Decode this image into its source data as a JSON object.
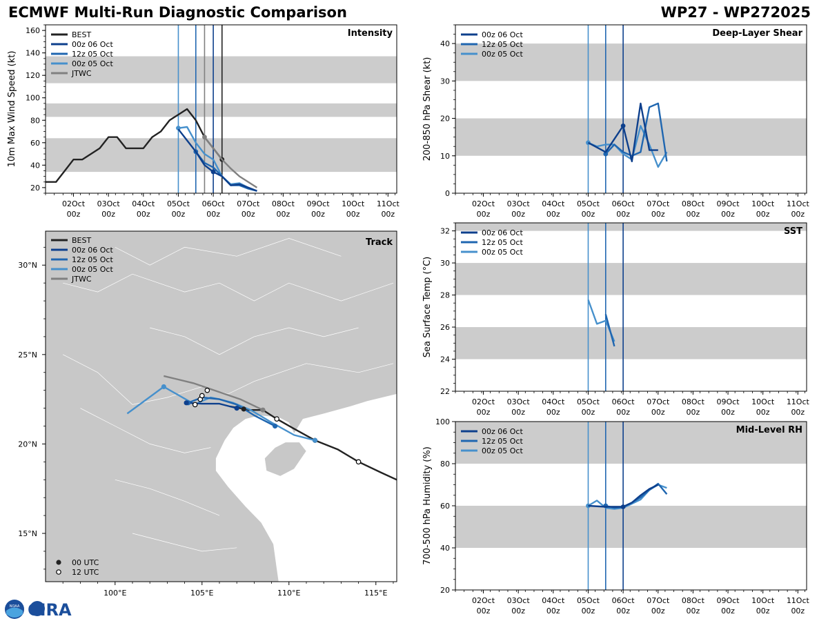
{
  "header": {
    "title": "ECMWF Multi-Run Diagnostic Comparison",
    "storm_id": "WP27 - WP272025"
  },
  "logo": {
    "text": "CIRA",
    "noaa_text": "NOAA"
  },
  "colors": {
    "best": "#222222",
    "run_00z06": "#0d3f8c",
    "run_12z05": "#1f66b0",
    "run_00z05": "#4690cc",
    "jtwc": "#808080",
    "band": "#cccccc",
    "land": "#c8c8c8",
    "border": "#ffffff"
  },
  "time_axis": {
    "ticks": [
      "02Oct\n00z",
      "03Oct\n00z",
      "04Oct\n00z",
      "05Oct\n00z",
      "06Oct\n00z",
      "07Oct\n00z",
      "08Oct\n00z",
      "09Oct\n00z",
      "10Oct\n00z",
      "11Oct\n00z"
    ],
    "start_day": 1.2,
    "end_day": 11.25
  },
  "chart_data": [
    {
      "id": "intensity",
      "type": "line",
      "title": "Intensity",
      "ylabel": "10m Max Wind Speed (kt)",
      "ylim": [
        15,
        165
      ],
      "yticks": [
        20,
        40,
        60,
        80,
        100,
        120,
        140,
        160
      ],
      "bands": [
        [
          34,
          64
        ],
        [
          83,
          95
        ],
        [
          113,
          137
        ]
      ],
      "init_lines": [
        {
          "day": 5.0,
          "color_key": "run_00z05"
        },
        {
          "day": 5.5,
          "color_key": "run_12z05"
        },
        {
          "day": 5.75,
          "color_key": "jtwc"
        },
        {
          "day": 6.0,
          "color_key": "run_00z06"
        },
        {
          "day": 6.25,
          "color_key": "best"
        }
      ],
      "legend": [
        "BEST",
        "00z 06 Oct",
        "12z 05 Oct",
        "00z 05 Oct",
        "JTWC"
      ],
      "legend_colors": [
        "best",
        "run_00z06",
        "run_12z05",
        "run_00z05",
        "jtwc"
      ],
      "series": [
        {
          "name": "BEST",
          "color_key": "best",
          "x": [
            1.2,
            1.5,
            1.75,
            2.0,
            2.25,
            2.5,
            2.75,
            3.0,
            3.25,
            3.5,
            3.75,
            4.0,
            4.25,
            4.5,
            4.75,
            5.0,
            5.25,
            5.5,
            5.75,
            6.0,
            6.25
          ],
          "y": [
            25,
            25,
            35,
            45,
            45,
            50,
            55,
            65,
            65,
            55,
            55,
            55,
            65,
            70,
            80,
            85,
            90,
            80,
            65,
            55,
            45
          ],
          "markers": [
            6.25
          ]
        },
        {
          "name": "00z 05 Oct",
          "color_key": "run_00z05",
          "x": [
            5.0,
            5.25,
            5.5,
            5.75,
            6.0,
            6.25,
            6.5,
            6.75,
            7.0,
            7.25
          ],
          "y": [
            73,
            74,
            60,
            50,
            45,
            30,
            23,
            24,
            20,
            17
          ],
          "markers": [
            5.0
          ]
        },
        {
          "name": "12z 05 Oct",
          "color_key": "run_12z05",
          "x": [
            5.5,
            5.75,
            6.0,
            6.25,
            6.5,
            6.75,
            7.0,
            7.25
          ],
          "y": [
            52,
            42,
            38,
            30,
            22,
            22,
            19,
            17
          ],
          "markers": [
            5.5
          ]
        },
        {
          "name": "00z 06 Oct",
          "color_key": "run_00z06",
          "x": [
            5.0,
            5.25,
            5.5,
            5.75,
            6.0,
            6.25,
            6.5,
            6.75,
            7.0,
            7.25
          ],
          "y": [
            72,
            62,
            52,
            40,
            34,
            30,
            22,
            23,
            20,
            17
          ],
          "markers": [
            6.0
          ]
        },
        {
          "name": "JTWC",
          "color_key": "jtwc",
          "x": [
            5.75,
            6.0,
            6.25,
            6.5,
            6.75,
            7.0,
            7.25
          ],
          "y": [
            65,
            55,
            45,
            37,
            30,
            25,
            20
          ],
          "markers": [
            5.75
          ]
        }
      ]
    },
    {
      "id": "shear",
      "type": "line",
      "title": "Deep-Layer Shear",
      "ylabel": "200-850 hPa Shear (kt)",
      "ylim": [
        0,
        45
      ],
      "yticks": [
        0,
        10,
        20,
        30,
        40
      ],
      "bands": [
        [
          10,
          20
        ],
        [
          30,
          40
        ]
      ],
      "init_lines": [
        {
          "day": 5.0,
          "color_key": "run_00z05"
        },
        {
          "day": 5.5,
          "color_key": "run_12z05"
        },
        {
          "day": 6.0,
          "color_key": "run_00z06"
        }
      ],
      "legend": [
        "00z 06 Oct",
        "12z 05 Oct",
        "00z 05 Oct"
      ],
      "legend_colors": [
        "run_00z06",
        "run_12z05",
        "run_00z05"
      ],
      "series": [
        {
          "name": "00z 05 Oct",
          "color_key": "run_00z05",
          "x": [
            5.0,
            5.25,
            5.5,
            5.75,
            6.0,
            6.25,
            6.5,
            6.75,
            7.0,
            7.25
          ],
          "y": [
            13.5,
            12.5,
            13,
            13,
            10.5,
            9,
            18,
            13,
            7,
            11
          ],
          "markers": [
            5.0
          ]
        },
        {
          "name": "12z 05 Oct",
          "color_key": "run_12z05",
          "x": [
            5.5,
            5.75,
            6.0,
            6.25,
            6.5,
            6.75,
            7.0,
            7.25
          ],
          "y": [
            10.5,
            13,
            11,
            10,
            11,
            23,
            24,
            8.5
          ],
          "markers": [
            5.5
          ]
        },
        {
          "name": "00z 06 Oct",
          "color_key": "run_00z06",
          "x": [
            5.0,
            5.5,
            6.0,
            6.25,
            6.5,
            6.75,
            7.0
          ],
          "y": [
            13.5,
            11,
            18,
            8.5,
            24,
            11.5,
            11.5
          ],
          "markers": [
            6.0
          ]
        }
      ]
    },
    {
      "id": "sst",
      "type": "line",
      "title": "SST",
      "ylabel": "Sea Surface Temp (°C)",
      "ylim": [
        22,
        32.5
      ],
      "yticks": [
        22,
        24,
        26,
        28,
        30,
        32
      ],
      "bands": [
        [
          24,
          26
        ],
        [
          28,
          30
        ],
        [
          32,
          32.5
        ]
      ],
      "init_lines": [
        {
          "day": 5.0,
          "color_key": "run_00z05"
        },
        {
          "day": 5.5,
          "color_key": "run_12z05"
        },
        {
          "day": 6.0,
          "color_key": "run_00z06"
        }
      ],
      "legend": [
        "00z 06 Oct",
        "12z 05 Oct",
        "00z 05 Oct"
      ],
      "legend_colors": [
        "run_00z06",
        "run_12z05",
        "run_00z05"
      ],
      "series": [
        {
          "name": "00z 05 Oct",
          "color_key": "run_00z05",
          "x": [
            5.0,
            5.25,
            5.5,
            5.75
          ],
          "y": [
            27.7,
            26.2,
            26.4,
            25.1
          ],
          "markers": []
        },
        {
          "name": "12z 05 Oct",
          "color_key": "run_12z05",
          "x": [
            5.5,
            5.75
          ],
          "y": [
            26.8,
            24.8
          ],
          "markers": []
        }
      ]
    },
    {
      "id": "rh",
      "type": "line",
      "title": "Mid-Level RH",
      "ylabel": "700-500 hPa Humidity (%)",
      "ylim": [
        20,
        100
      ],
      "yticks": [
        20,
        40,
        60,
        80,
        100
      ],
      "bands": [
        [
          40,
          60
        ],
        [
          80,
          100
        ]
      ],
      "init_lines": [
        {
          "day": 5.0,
          "color_key": "run_00z05"
        },
        {
          "day": 5.5,
          "color_key": "run_12z05"
        },
        {
          "day": 6.0,
          "color_key": "run_00z06"
        }
      ],
      "legend": [
        "00z 06 Oct",
        "12z 05 Oct",
        "00z 05 Oct"
      ],
      "legend_colors": [
        "run_00z06",
        "run_12z05",
        "run_00z05"
      ],
      "series": [
        {
          "name": "00z 05 Oct",
          "color_key": "run_00z05",
          "x": [
            5.0,
            5.25,
            5.5,
            5.75,
            6.0,
            6.25,
            6.5,
            6.75,
            7.0,
            7.25
          ],
          "y": [
            60,
            62.5,
            59,
            58.5,
            59,
            61,
            63,
            67.5,
            70,
            68.5
          ],
          "markers": [
            5.0
          ]
        },
        {
          "name": "12z 05 Oct",
          "color_key": "run_12z05",
          "x": [
            5.5,
            5.75,
            6.0,
            6.25,
            6.5,
            6.75,
            7.0,
            7.25
          ],
          "y": [
            60,
            59,
            59.5,
            61.5,
            64,
            67.5,
            70.5,
            65.5
          ],
          "markers": [
            5.5
          ]
        },
        {
          "name": "00z 06 Oct",
          "color_key": "run_00z06",
          "x": [
            5.0,
            5.5,
            6.0,
            6.25,
            6.5,
            6.75,
            7.0
          ],
          "y": [
            60,
            59.5,
            59.5,
            61.5,
            65,
            68,
            70
          ],
          "markers": [
            6.0
          ]
        }
      ]
    },
    {
      "id": "track",
      "type": "line",
      "title": "Track",
      "lon_range": [
        96.0,
        116.2
      ],
      "lat_range": [
        12.3,
        31.9
      ],
      "lon_ticks": [
        100,
        105,
        110,
        115
      ],
      "lon_tick_labels": [
        "100°E",
        "105°E",
        "110°E",
        "115°E"
      ],
      "lat_ticks": [
        15,
        20,
        25,
        30
      ],
      "lat_tick_labels": [
        "15°N",
        "20°N",
        "25°N",
        "30°N"
      ],
      "legend": [
        "BEST",
        "00z 06 Oct",
        "12z 05 Oct",
        "00z 05 Oct",
        "JTWC"
      ],
      "legend_colors": [
        "best",
        "run_00z06",
        "run_12z05",
        "run_00z05",
        "jtwc"
      ],
      "marker_legend": [
        "00 UTC",
        "12 UTC"
      ],
      "series": [
        {
          "name": "BEST",
          "color_key": "best",
          "lon": [
            116.2,
            115.3,
            114.0,
            112.8,
            111.5,
            110.2,
            109.3,
            108.5,
            107.6,
            107.2,
            106.6
          ],
          "lat": [
            18.0,
            18.4,
            19.0,
            19.7,
            20.2,
            20.9,
            21.4,
            21.9,
            21.9,
            22.0,
            22.1
          ],
          "open": [
            [
              114.0,
              19.0
            ],
            [
              109.3,
              21.4
            ]
          ],
          "filled": [
            [
              111.5,
              20.2
            ],
            [
              107.4,
              21.95
            ]
          ]
        },
        {
          "name": "00z 05 Oct",
          "color_key": "run_00z05",
          "lon": [
            111.5,
            110.3,
            109.0,
            107.8,
            106.8,
            106.0,
            105.5,
            105.0,
            104.6,
            102.8,
            100.7
          ],
          "lat": [
            20.2,
            20.5,
            21.2,
            21.9,
            22.3,
            22.5,
            22.6,
            22.4,
            22.2,
            23.2,
            21.7
          ],
          "open": [
            [
              104.6,
              22.2
            ]
          ],
          "filled": [
            [
              111.5,
              20.2
            ],
            [
              102.8,
              23.2
            ]
          ]
        },
        {
          "name": "12z 05 Oct",
          "color_key": "run_12z05",
          "lon": [
            109.2,
            108.0,
            107.0,
            106.0,
            105.0,
            104.2
          ],
          "lat": [
            21.0,
            21.6,
            22.2,
            22.5,
            22.6,
            22.3
          ],
          "open": [
            [
              104.9,
              22.5
            ]
          ],
          "filled": [
            [
              109.2,
              21.0
            ],
            [
              104.2,
              22.3
            ]
          ]
        },
        {
          "name": "00z 06 Oct",
          "color_key": "run_00z06",
          "lon": [
            107.0,
            106.0,
            105.0,
            104.1
          ],
          "lat": [
            22.0,
            22.25,
            22.25,
            22.3
          ],
          "open": [
            [
              105.0,
              22.7
            ]
          ],
          "filled": [
            [
              107.0,
              22.0
            ],
            [
              104.1,
              22.3
            ]
          ]
        },
        {
          "name": "JTWC",
          "color_key": "jtwc",
          "lon": [
            108.5,
            107.2,
            106.0,
            104.5,
            102.8
          ],
          "lat": [
            21.9,
            22.5,
            22.9,
            23.4,
            23.8
          ],
          "open": [
            [
              105.3,
              23.0
            ]
          ],
          "filled": [
            [
              108.5,
              21.9
            ]
          ]
        }
      ]
    }
  ]
}
